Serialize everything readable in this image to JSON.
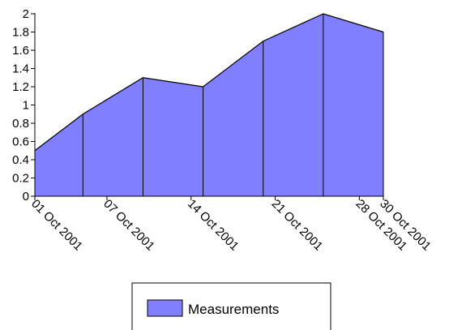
{
  "chart_data": {
    "type": "area",
    "title": "",
    "xlabel": "",
    "ylabel": "",
    "x": [
      "2001-10-01",
      "2001-10-05",
      "2001-10-10",
      "2001-10-15",
      "2001-10-20",
      "2001-10-25",
      "2001-10-30"
    ],
    "series": [
      {
        "name": "Measurements",
        "values": [
          0.5,
          0.9,
          1.3,
          1.2,
          1.7,
          2.0,
          1.8
        ],
        "color": "#7f7fff"
      }
    ],
    "ylim": [
      0,
      2
    ],
    "y_ticks": [
      "0",
      "0.2",
      "0.4",
      "0.6",
      "0.8",
      "1",
      "1.2",
      "1.4",
      "1.6",
      "1.8",
      "2"
    ],
    "xlim": [
      "2001-10-01",
      "2001-10-30"
    ],
    "x_ticks": [
      {
        "date": "2001-10-01",
        "label": "01 Oct 2001"
      },
      {
        "date": "2001-10-07",
        "label": "07 Oct 2001"
      },
      {
        "date": "2001-10-14",
        "label": "14 Oct 2001"
      },
      {
        "date": "2001-10-21",
        "label": "21 Oct 2001"
      },
      {
        "date": "2001-10-28",
        "label": "28 Oct 2001"
      },
      {
        "date": "2001-10-30",
        "label": "30 Oct 2001"
      }
    ],
    "grid": false,
    "legend": {
      "position": "bottom",
      "entries": [
        {
          "label": "Measurements",
          "color": "#7f7fff"
        }
      ]
    }
  }
}
